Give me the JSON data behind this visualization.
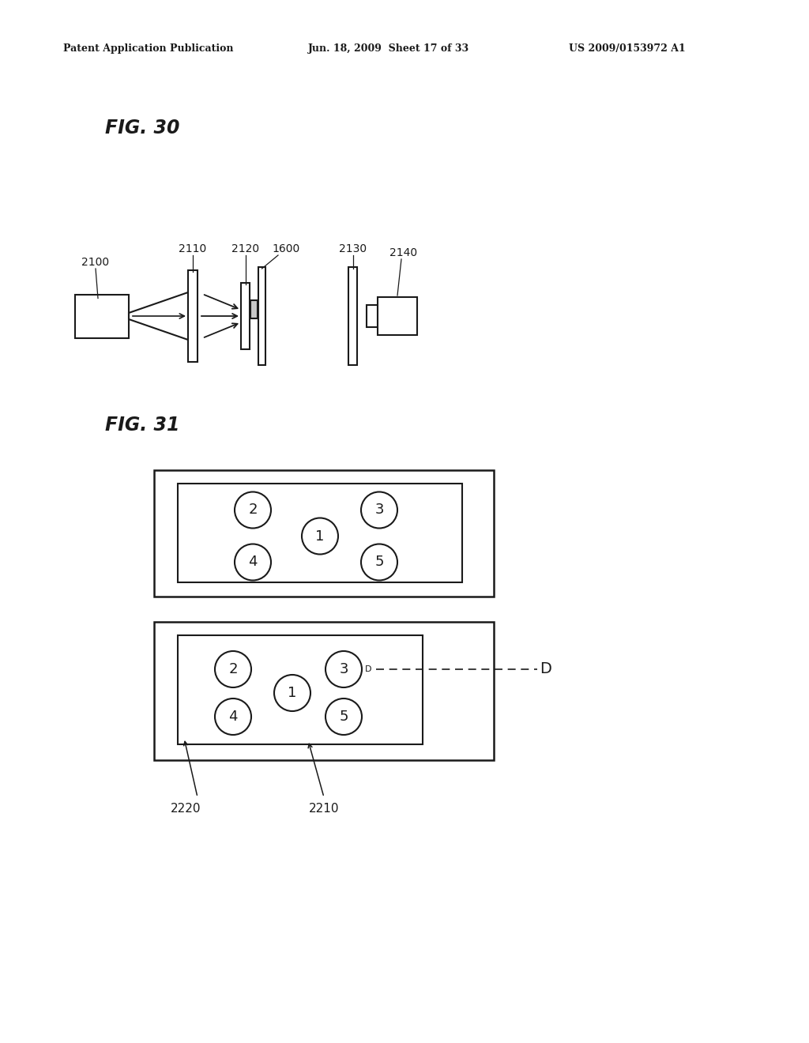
{
  "header_left": "Patent Application Publication",
  "header_mid": "Jun. 18, 2009  Sheet 17 of 33",
  "header_right": "US 2009/0153972 A1",
  "fig30_label": "FIG. 30",
  "fig31_label": "FIG. 31",
  "bg_color": "#ffffff",
  "line_color": "#1a1a1a",
  "label_2100": "2100",
  "label_2110": "2110",
  "label_2120": "2120",
  "label_1600": "1600",
  "label_2130": "2130",
  "label_2140": "2140",
  "label_2220": "2220",
  "label_2210": "2210",
  "label_D": "D"
}
